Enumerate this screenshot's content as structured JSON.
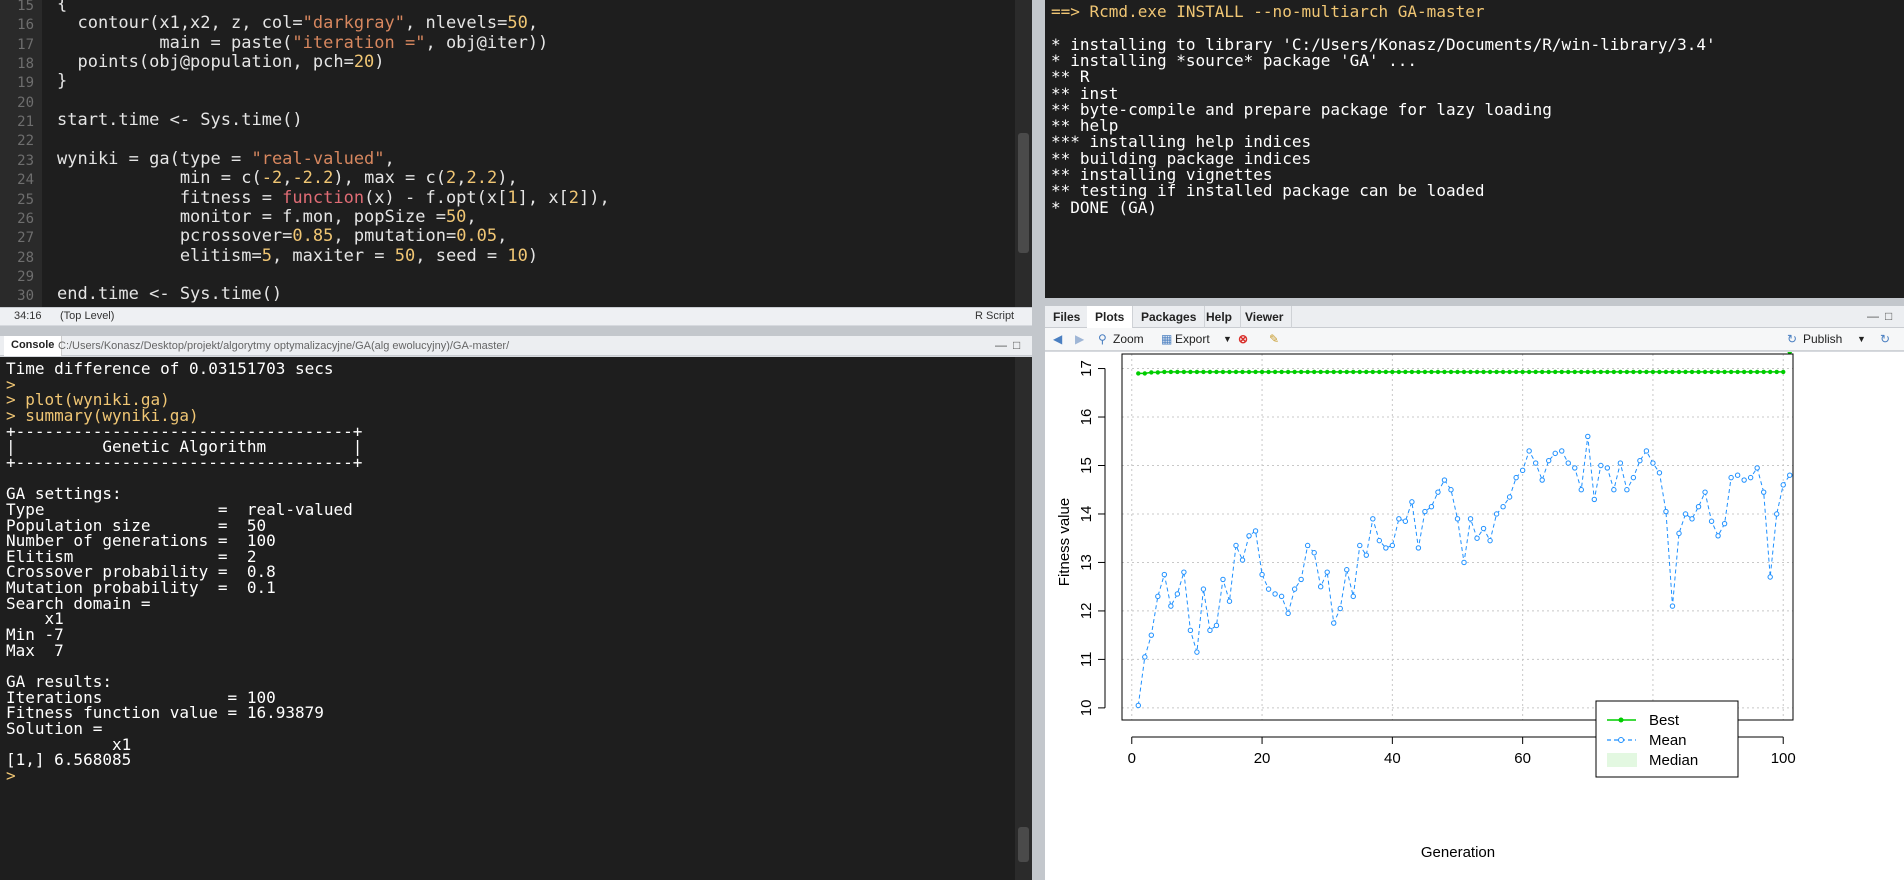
{
  "editor": {
    "line_numbers": [
      "15",
      "16",
      "17",
      "18",
      "19",
      "20",
      "21",
      "22",
      "23",
      "24",
      "25",
      "26",
      "27",
      "28",
      "29",
      "30"
    ],
    "lines": [
      [
        {
          "t": "{",
          "c": ""
        }
      ],
      [
        {
          "t": "  contour(x1,x2, z, col=",
          "c": ""
        },
        {
          "t": "\"darkgray\"",
          "c": "s"
        },
        {
          "t": ", nlevels=",
          "c": ""
        },
        {
          "t": "50",
          "c": "n"
        },
        {
          "t": ",",
          "c": ""
        }
      ],
      [
        {
          "t": "          main = paste(",
          "c": ""
        },
        {
          "t": "\"iteration =\"",
          "c": "s"
        },
        {
          "t": ", obj@iter))",
          "c": ""
        }
      ],
      [
        {
          "t": "  points(obj@population, pch=",
          "c": ""
        },
        {
          "t": "20",
          "c": "n"
        },
        {
          "t": ")",
          "c": ""
        }
      ],
      [
        {
          "t": "}",
          "c": ""
        }
      ],
      [
        {
          "t": "",
          "c": ""
        }
      ],
      [
        {
          "t": "start.time <- Sys.time()",
          "c": ""
        }
      ],
      [
        {
          "t": "",
          "c": ""
        }
      ],
      [
        {
          "t": "wyniki = ga(type = ",
          "c": ""
        },
        {
          "t": "\"real-valued\"",
          "c": "s"
        },
        {
          "t": ",",
          "c": ""
        }
      ],
      [
        {
          "t": "            min = c(",
          "c": ""
        },
        {
          "t": "-2",
          "c": "n"
        },
        {
          "t": ",",
          "c": ""
        },
        {
          "t": "-2.2",
          "c": "n"
        },
        {
          "t": "), max = c(",
          "c": ""
        },
        {
          "t": "2",
          "c": "n"
        },
        {
          "t": ",",
          "c": ""
        },
        {
          "t": "2.2",
          "c": "n"
        },
        {
          "t": "),",
          "c": ""
        }
      ],
      [
        {
          "t": "            fitness = ",
          "c": ""
        },
        {
          "t": "function",
          "c": "k"
        },
        {
          "t": "(x) - f.opt(x[",
          "c": ""
        },
        {
          "t": "1",
          "c": "n"
        },
        {
          "t": "], x[",
          "c": ""
        },
        {
          "t": "2",
          "c": "n"
        },
        {
          "t": "]),",
          "c": ""
        }
      ],
      [
        {
          "t": "            monitor = f.mon, popSize =",
          "c": ""
        },
        {
          "t": "50",
          "c": "n"
        },
        {
          "t": ",",
          "c": ""
        }
      ],
      [
        {
          "t": "            pcrossover=",
          "c": ""
        },
        {
          "t": "0.85",
          "c": "n"
        },
        {
          "t": ", pmutation=",
          "c": ""
        },
        {
          "t": "0.05",
          "c": "n"
        },
        {
          "t": ",",
          "c": ""
        }
      ],
      [
        {
          "t": "            elitism=",
          "c": ""
        },
        {
          "t": "5",
          "c": "n"
        },
        {
          "t": ", maxiter = ",
          "c": ""
        },
        {
          "t": "50",
          "c": "n"
        },
        {
          "t": ", seed = ",
          "c": ""
        },
        {
          "t": "10",
          "c": "n"
        },
        {
          "t": ")",
          "c": ""
        }
      ],
      [
        {
          "t": "",
          "c": ""
        }
      ],
      [
        {
          "t": "end.time <- Sys.time()",
          "c": ""
        }
      ]
    ],
    "status_position": "34:16",
    "status_scope": "(Top Level)",
    "status_type": "R Script"
  },
  "console": {
    "tab_label": "Console",
    "path": "C:/Users/Konasz/Desktop/projekt/algorytmy optymalizacyjne/GA(alg ewolucyjny)/GA-master/",
    "lines": [
      {
        "t": "Time difference of 0.03151703 secs",
        "cmd": false
      },
      {
        "t": ">",
        "cmd": true
      },
      {
        "t": "> plot(wyniki.ga)",
        "cmd": true
      },
      {
        "t": "> summary(wyniki.ga)",
        "cmd": true
      },
      {
        "t": "+-----------------------------------+",
        "cmd": false
      },
      {
        "t": "|         Genetic Algorithm         |",
        "cmd": false
      },
      {
        "t": "+-----------------------------------+",
        "cmd": false
      },
      {
        "t": "",
        "cmd": false
      },
      {
        "t": "GA settings:",
        "cmd": false
      },
      {
        "t": "Type                  =  real-valued",
        "cmd": false
      },
      {
        "t": "Population size       =  50",
        "cmd": false
      },
      {
        "t": "Number of generations =  100",
        "cmd": false
      },
      {
        "t": "Elitism               =  2",
        "cmd": false
      },
      {
        "t": "Crossover probability =  0.8",
        "cmd": false
      },
      {
        "t": "Mutation probability  =  0.1",
        "cmd": false
      },
      {
        "t": "Search domain =",
        "cmd": false
      },
      {
        "t": "    x1",
        "cmd": false
      },
      {
        "t": "Min -7",
        "cmd": false
      },
      {
        "t": "Max  7",
        "cmd": false
      },
      {
        "t": "",
        "cmd": false
      },
      {
        "t": "GA results:",
        "cmd": false
      },
      {
        "t": "Iterations             = 100",
        "cmd": false
      },
      {
        "t": "Fitness function value = 16.93879",
        "cmd": false
      },
      {
        "t": "Solution =",
        "cmd": false
      },
      {
        "t": "           x1",
        "cmd": false
      },
      {
        "t": "[1,] 6.568085",
        "cmd": false
      },
      {
        "t": ">",
        "cmd": true
      }
    ]
  },
  "build": {
    "lines": [
      {
        "t": "==> Rcmd.exe INSTALL --no-multiarch GA-master",
        "hdr": true
      },
      {
        "t": "",
        "hdr": false
      },
      {
        "t": "* installing to library 'C:/Users/Konasz/Documents/R/win-library/3.4'",
        "hdr": false
      },
      {
        "t": "* installing *source* package 'GA' ...",
        "hdr": false
      },
      {
        "t": "** R",
        "hdr": false
      },
      {
        "t": "** inst",
        "hdr": false
      },
      {
        "t": "** byte-compile and prepare package for lazy loading",
        "hdr": false
      },
      {
        "t": "** help",
        "hdr": false
      },
      {
        "t": "*** installing help indices",
        "hdr": false
      },
      {
        "t": "** building package indices",
        "hdr": false
      },
      {
        "t": "** installing vignettes",
        "hdr": false
      },
      {
        "t": "** testing if installed package can be loaded",
        "hdr": false
      },
      {
        "t": "* DONE (GA)",
        "hdr": false
      }
    ]
  },
  "plots_pane": {
    "tabs": [
      "Files",
      "Plots",
      "Packages",
      "Help",
      "Viewer"
    ],
    "active_tab": "Plots",
    "toolbar": {
      "zoom": "Zoom",
      "export": "Export",
      "publish": "Publish"
    }
  },
  "chart_data": {
    "type": "line",
    "xlabel": "Generation",
    "ylabel": "Fitness value",
    "xlim": [
      0,
      100
    ],
    "ylim": [
      10,
      17
    ],
    "x_ticks": [
      0,
      20,
      40,
      60,
      80,
      100
    ],
    "y_ticks": [
      10,
      11,
      12,
      13,
      14,
      15,
      16,
      17
    ],
    "grid": true,
    "legend_position": "bottom-right",
    "colors": {
      "best": "#00cd00",
      "mean": "#1e90ff",
      "median_band": "#e3f8e1"
    },
    "series": [
      {
        "name": "Best",
        "values": [
          16.9,
          16.9,
          16.92,
          16.92,
          16.93,
          16.93,
          16.93,
          16.93,
          16.93,
          16.93,
          16.93,
          16.93,
          16.93,
          16.93,
          16.93,
          16.93,
          16.93,
          16.93,
          16.93,
          16.93,
          16.93,
          16.93,
          16.93,
          16.93,
          16.93,
          16.93,
          16.93,
          16.93,
          16.93,
          16.93,
          16.93,
          16.93,
          16.93,
          16.93,
          16.93,
          16.93,
          16.93,
          16.93,
          16.93,
          16.93,
          16.93,
          16.93,
          16.93,
          16.93,
          16.93,
          16.93,
          16.93,
          16.93,
          16.93,
          16.93,
          16.93,
          16.93,
          16.93,
          16.93,
          16.93,
          16.93,
          16.93,
          16.93,
          16.93,
          16.93,
          16.93,
          16.93,
          16.93,
          16.93,
          16.93,
          16.93,
          16.93,
          16.93,
          16.93,
          16.93,
          16.93,
          16.93,
          16.93,
          16.93,
          16.93,
          16.93,
          16.93,
          16.93,
          16.93,
          16.93,
          16.93,
          16.93,
          16.93,
          16.93,
          16.93,
          16.93,
          16.93,
          16.93,
          16.93,
          16.93,
          16.93,
          16.93,
          16.93,
          16.93,
          16.93,
          16.93,
          16.93,
          16.93,
          16.93,
          16.93
        ]
      },
      {
        "name": "Mean",
        "values": [
          10.05,
          11.05,
          11.5,
          12.3,
          12.75,
          12.1,
          12.35,
          12.8,
          11.6,
          11.15,
          12.45,
          11.6,
          11.7,
          12.65,
          12.2,
          13.35,
          13.05,
          13.55,
          13.65,
          12.75,
          12.45,
          12.35,
          12.3,
          11.95,
          12.45,
          12.65,
          13.35,
          13.2,
          12.5,
          12.8,
          11.75,
          12.05,
          12.85,
          12.3,
          13.35,
          13.15,
          13.9,
          13.45,
          13.3,
          13.35,
          13.9,
          13.85,
          14.25,
          13.3,
          14.05,
          14.15,
          14.45,
          14.7,
          14.5,
          13.9,
          13.0,
          13.9,
          13.5,
          13.7,
          13.45,
          14.0,
          14.15,
          14.35,
          14.75,
          14.9,
          15.3,
          15.05,
          14.7,
          15.1,
          15.25,
          15.3,
          15.05,
          14.95,
          14.5,
          15.6,
          14.3,
          15.0,
          14.95,
          14.5,
          15.05,
          14.5,
          14.75,
          15.1,
          15.3,
          15.05,
          14.85,
          14.05,
          12.1,
          13.6,
          14.0,
          13.9,
          14.15,
          14.45,
          13.85,
          13.55,
          13.8,
          14.75,
          14.8,
          14.7,
          14.75,
          14.95,
          14.45,
          12.7,
          14.0,
          14.6,
          14.8
        ]
      },
      {
        "name": "Median"
      }
    ]
  }
}
